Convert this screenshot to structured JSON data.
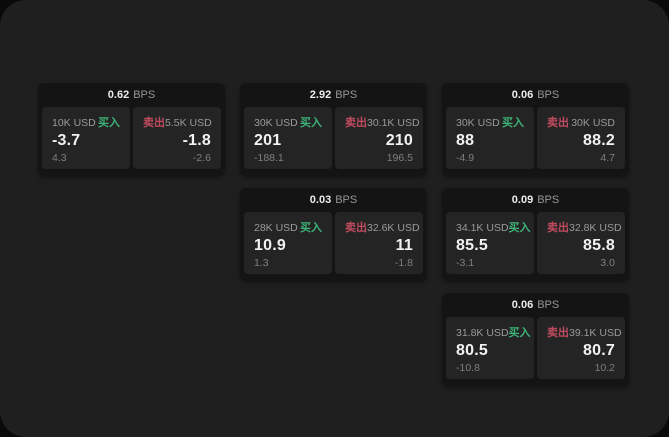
{
  "labels": {
    "buy": "买入",
    "sell": "卖出",
    "bps_unit": "BPS"
  },
  "colors": {
    "screen_bg": "#1f1f1f",
    "card_bg": "#141414",
    "panel_bg": "#242424",
    "buy_green": "#3db377",
    "sell_red": "#bf4b5e",
    "value_white": "#f2f2f2",
    "label_gray": "#9a9a9a"
  },
  "cards": [
    {
      "bps": "0.62",
      "buy": {
        "amount": "10K USD",
        "value": "-3.7",
        "delta": "4.3"
      },
      "sell": {
        "amount": "5.5K USD",
        "value": "-1.8",
        "delta": "-2.6"
      }
    },
    {
      "bps": "2.92",
      "buy": {
        "amount": "30K USD",
        "value": "201",
        "delta": "-188.1"
      },
      "sell": {
        "amount": "30.1K USD",
        "value": "210",
        "delta": "196.5"
      }
    },
    {
      "bps": "0.06",
      "buy": {
        "amount": "30K USD",
        "value": "88",
        "delta": "-4.9"
      },
      "sell": {
        "amount": "30K USD",
        "value": "88.2",
        "delta": "4.7"
      }
    },
    {
      "bps": "0.03",
      "buy": {
        "amount": "28K USD",
        "value": "10.9",
        "delta": "1.3"
      },
      "sell": {
        "amount": "32.6K USD",
        "value": "11",
        "delta": "-1.8"
      }
    },
    {
      "bps": "0.09",
      "buy": {
        "amount": "34.1K USD",
        "value": "85.5",
        "delta": "-3.1"
      },
      "sell": {
        "amount": "32.8K USD",
        "value": "85.8",
        "delta": "3.0"
      }
    },
    {
      "bps": "0.06",
      "buy": {
        "amount": "31.8K USD",
        "value": "80.5",
        "delta": "-10.8"
      },
      "sell": {
        "amount": "39.1K USD",
        "value": "80.7",
        "delta": "10.2"
      }
    }
  ]
}
